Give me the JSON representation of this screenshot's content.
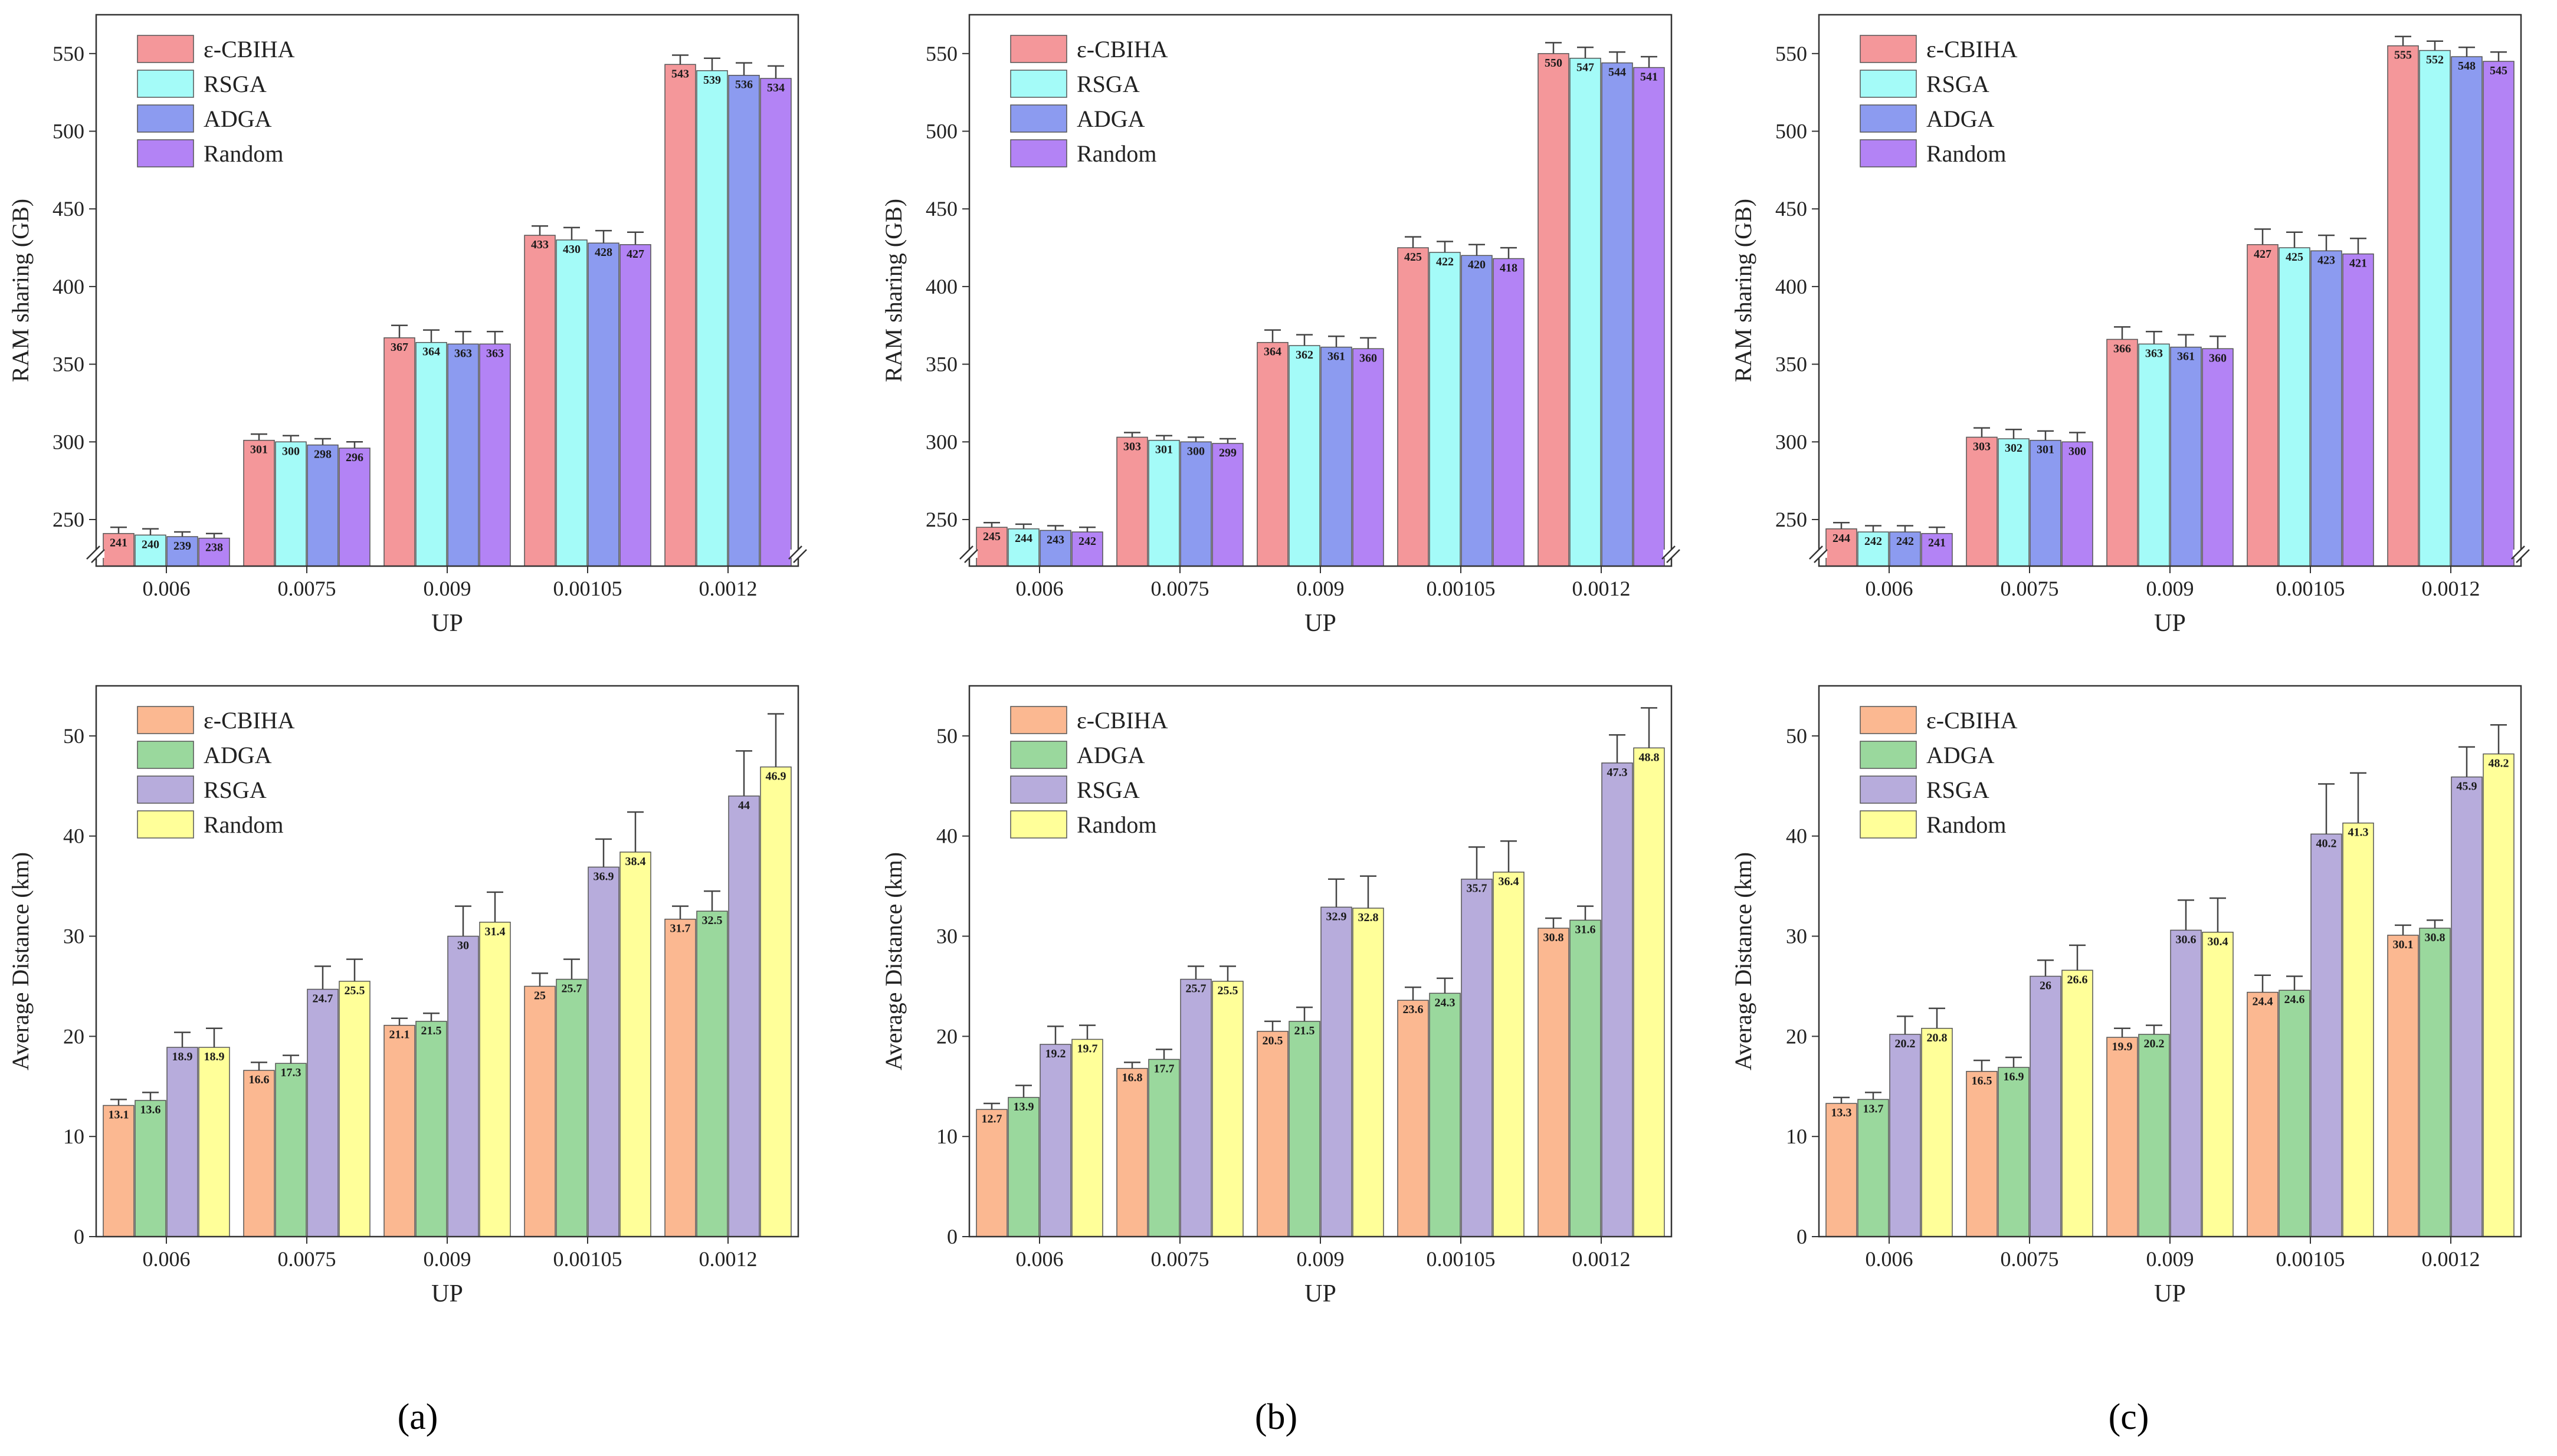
{
  "figure": {
    "panel_labels": [
      "(a)",
      "(b)",
      "(c)"
    ]
  },
  "chart_data": [
    {
      "type": "bar",
      "panel": "a",
      "row": "top",
      "categories": [
        "0.006",
        "0.0075",
        "0.009",
        "0.00105",
        "0.0012"
      ],
      "xlabel": "UP",
      "ylabel": "RAM sharing (GB)",
      "ylim": [
        220,
        575
      ],
      "yticks": [
        250,
        300,
        350,
        400,
        450,
        500,
        550
      ],
      "axis_break": true,
      "legend_position": "top-left",
      "series": [
        {
          "name": "ε-CBIHA",
          "color": "#f4979a",
          "values": [
            241,
            301,
            367,
            433,
            543
          ],
          "labels": [
            "241",
            "301",
            "367",
            "433",
            "543"
          ],
          "errors": [
            4,
            4,
            8,
            6,
            6
          ]
        },
        {
          "name": "RSGA",
          "color": "#a4fbf8",
          "values": [
            240,
            300,
            364,
            430,
            539
          ],
          "labels": [
            "240",
            "300",
            "364",
            "430",
            "539"
          ],
          "errors": [
            4,
            4,
            8,
            8,
            8
          ]
        },
        {
          "name": "ADGA",
          "color": "#8c9bf0",
          "values": [
            239,
            298,
            363,
            428,
            536
          ],
          "labels": [
            "239",
            "298",
            "363",
            "428",
            "536"
          ],
          "errors": [
            3,
            4,
            8,
            8,
            8
          ]
        },
        {
          "name": "Random",
          "color": "#b383f5",
          "values": [
            238,
            296,
            363,
            427,
            534
          ],
          "labels": [
            "238",
            "296",
            "363",
            "427",
            "534"
          ],
          "errors": [
            3,
            4,
            8,
            8,
            8
          ]
        }
      ]
    },
    {
      "type": "bar",
      "panel": "b",
      "row": "top",
      "categories": [
        "0.006",
        "0.0075",
        "0.009",
        "0.00105",
        "0.0012"
      ],
      "xlabel": "UP",
      "ylabel": "RAM sharing (GB)",
      "ylim": [
        220,
        575
      ],
      "yticks": [
        250,
        300,
        350,
        400,
        450,
        500,
        550
      ],
      "axis_break": true,
      "legend_position": "top-left",
      "series": [
        {
          "name": "ε-CBIHA",
          "color": "#f4979a",
          "values": [
            245,
            303,
            364,
            425,
            550
          ],
          "labels": [
            "245",
            "303",
            "364",
            "425",
            "550"
          ],
          "errors": [
            3,
            3,
            8,
            7,
            7
          ]
        },
        {
          "name": "RSGA",
          "color": "#a4fbf8",
          "values": [
            244,
            301,
            362,
            422,
            547
          ],
          "labels": [
            "244",
            "301",
            "362",
            "422",
            "547"
          ],
          "errors": [
            3,
            3,
            7,
            7,
            7
          ]
        },
        {
          "name": "ADGA",
          "color": "#8c9bf0",
          "values": [
            243,
            300,
            361,
            420,
            544
          ],
          "labels": [
            "243",
            "300",
            "361",
            "420",
            "544"
          ],
          "errors": [
            3,
            3,
            7,
            7,
            7
          ]
        },
        {
          "name": "Random",
          "color": "#b383f5",
          "values": [
            242,
            299,
            360,
            418,
            541
          ],
          "labels": [
            "242",
            "299",
            "360",
            "418",
            "541"
          ],
          "errors": [
            3,
            3,
            7,
            7,
            7
          ]
        }
      ]
    },
    {
      "type": "bar",
      "panel": "c",
      "row": "top",
      "categories": [
        "0.006",
        "0.0075",
        "0.009",
        "0.00105",
        "0.0012"
      ],
      "xlabel": "UP",
      "ylabel": "RAM sharing (GB)",
      "ylim": [
        220,
        575
      ],
      "yticks": [
        250,
        300,
        350,
        400,
        450,
        500,
        550
      ],
      "axis_break": true,
      "legend_position": "top-left",
      "series": [
        {
          "name": "ε-CBIHA",
          "color": "#f4979a",
          "values": [
            244,
            303,
            366,
            427,
            555
          ],
          "labels": [
            "244",
            "303",
            "366",
            "427",
            "555"
          ],
          "errors": [
            4,
            6,
            8,
            10,
            6
          ]
        },
        {
          "name": "RSGA",
          "color": "#a4fbf8",
          "values": [
            242,
            302,
            363,
            425,
            552
          ],
          "labels": [
            "242",
            "302",
            "363",
            "425",
            "552"
          ],
          "errors": [
            4,
            6,
            8,
            10,
            6
          ]
        },
        {
          "name": "ADGA",
          "color": "#8c9bf0",
          "values": [
            242,
            301,
            361,
            423,
            548
          ],
          "labels": [
            "242",
            "301",
            "361",
            "423",
            "548"
          ],
          "errors": [
            4,
            6,
            8,
            10,
            6
          ]
        },
        {
          "name": "Random",
          "color": "#b383f5",
          "values": [
            241,
            300,
            360,
            421,
            545
          ],
          "labels": [
            "241",
            "300",
            "360",
            "421",
            "545"
          ],
          "errors": [
            4,
            6,
            8,
            10,
            6
          ]
        }
      ]
    },
    {
      "type": "bar",
      "panel": "a",
      "row": "bottom",
      "categories": [
        "0.006",
        "0.0075",
        "0.009",
        "0.00105",
        "0.0012"
      ],
      "xlabel": "UP",
      "ylabel": "Average Distance (km)",
      "ylim": [
        0,
        55
      ],
      "yticks": [
        0,
        10,
        20,
        30,
        40,
        50
      ],
      "axis_break": false,
      "legend_position": "top-left",
      "series": [
        {
          "name": "ε-CBIHA",
          "color": "#fbb891",
          "values": [
            13.1,
            16.6,
            21.1,
            25,
            31.7
          ],
          "labels": [
            "13.1",
            "16.6",
            "21.1",
            "25",
            "31.7"
          ],
          "errors": [
            0.6,
            0.8,
            0.7,
            1.3,
            1.3
          ]
        },
        {
          "name": "ADGA",
          "color": "#9ad89d",
          "values": [
            13.6,
            17.3,
            21.5,
            25.7,
            32.5
          ],
          "labels": [
            "13.6",
            "17.3",
            "21.5",
            "25.7",
            "32.5"
          ],
          "errors": [
            0.8,
            0.8,
            0.8,
            2.0,
            2.0
          ]
        },
        {
          "name": "RSGA",
          "color": "#b7acdc",
          "values": [
            18.9,
            24.7,
            30,
            36.9,
            44
          ],
          "labels": [
            "18.9",
            "24.7",
            "30",
            "36.9",
            "44"
          ],
          "errors": [
            1.5,
            2.3,
            3.0,
            2.8,
            4.5
          ]
        },
        {
          "name": "Random",
          "color": "#ffff99",
          "values": [
            18.9,
            25.5,
            31.4,
            38.4,
            46.9
          ],
          "labels": [
            "18.9",
            "25.5",
            "31.4",
            "38.4",
            "46.9"
          ],
          "errors": [
            1.9,
            2.2,
            3.0,
            4.0,
            5.3
          ]
        }
      ]
    },
    {
      "type": "bar",
      "panel": "b",
      "row": "bottom",
      "categories": [
        "0.006",
        "0.0075",
        "0.009",
        "0.00105",
        "0.0012"
      ],
      "xlabel": "UP",
      "ylabel": "Average Distance (km)",
      "ylim": [
        0,
        55
      ],
      "yticks": [
        0,
        10,
        20,
        30,
        40,
        50
      ],
      "axis_break": false,
      "legend_position": "top-left",
      "series": [
        {
          "name": "ε-CBIHA",
          "color": "#fbb891",
          "values": [
            12.7,
            16.8,
            20.5,
            23.6,
            30.8
          ],
          "labels": [
            "12.7",
            "16.8",
            "20.5",
            "23.6",
            "30.8"
          ],
          "errors": [
            0.6,
            0.6,
            1.0,
            1.3,
            1.0
          ]
        },
        {
          "name": "ADGA",
          "color": "#9ad89d",
          "values": [
            13.9,
            17.7,
            21.5,
            24.3,
            31.6
          ],
          "labels": [
            "13.9",
            "17.7",
            "21.5",
            "24.3",
            "31.6"
          ],
          "errors": [
            1.2,
            1.0,
            1.4,
            1.5,
            1.4
          ]
        },
        {
          "name": "RSGA",
          "color": "#b7acdc",
          "values": [
            19.2,
            25.7,
            32.9,
            35.7,
            47.3
          ],
          "labels": [
            "19.2",
            "25.7",
            "32.9",
            "35.7",
            "47.3"
          ],
          "errors": [
            1.8,
            1.3,
            2.8,
            3.2,
            2.8
          ]
        },
        {
          "name": "Random",
          "color": "#ffff99",
          "values": [
            19.7,
            25.5,
            32.8,
            36.4,
            48.8
          ],
          "labels": [
            "19.7",
            "25.5",
            "32.8",
            "36.4",
            "48.8"
          ],
          "errors": [
            1.4,
            1.5,
            3.2,
            3.1,
            4.0
          ]
        }
      ]
    },
    {
      "type": "bar",
      "panel": "c",
      "row": "bottom",
      "categories": [
        "0.006",
        "0.0075",
        "0.009",
        "0.00105",
        "0.0012"
      ],
      "xlabel": "UP",
      "ylabel": "Average Distance (km)",
      "ylim": [
        0,
        55
      ],
      "yticks": [
        0,
        10,
        20,
        30,
        40,
        50
      ],
      "axis_break": false,
      "legend_position": "top-left",
      "series": [
        {
          "name": "ε-CBIHA",
          "color": "#fbb891",
          "values": [
            13.3,
            16.5,
            19.9,
            24.4,
            30.1
          ],
          "labels": [
            "13.3",
            "16.5",
            "19.9",
            "24.4",
            "30.1"
          ],
          "errors": [
            0.6,
            1.1,
            0.9,
            1.7,
            1.0
          ]
        },
        {
          "name": "ADGA",
          "color": "#9ad89d",
          "values": [
            13.7,
            16.9,
            20.2,
            24.6,
            30.8
          ],
          "labels": [
            "13.7",
            "16.9",
            "20.2",
            "24.6",
            "30.8"
          ],
          "errors": [
            0.7,
            1.0,
            0.9,
            1.4,
            0.8
          ]
        },
        {
          "name": "RSGA",
          "color": "#b7acdc",
          "values": [
            20.2,
            26,
            30.6,
            40.2,
            45.9
          ],
          "labels": [
            "20.2",
            "26",
            "30.6",
            "40.2",
            "45.9"
          ],
          "errors": [
            1.8,
            1.6,
            3.0,
            5.0,
            3.0
          ]
        },
        {
          "name": "Random",
          "color": "#ffff99",
          "values": [
            20.8,
            26.6,
            30.4,
            41.3,
            48.2
          ],
          "labels": [
            "20.8",
            "26.6",
            "30.4",
            "41.3",
            "48.2"
          ],
          "errors": [
            2.0,
            2.5,
            3.4,
            5.0,
            2.9
          ]
        }
      ]
    }
  ]
}
